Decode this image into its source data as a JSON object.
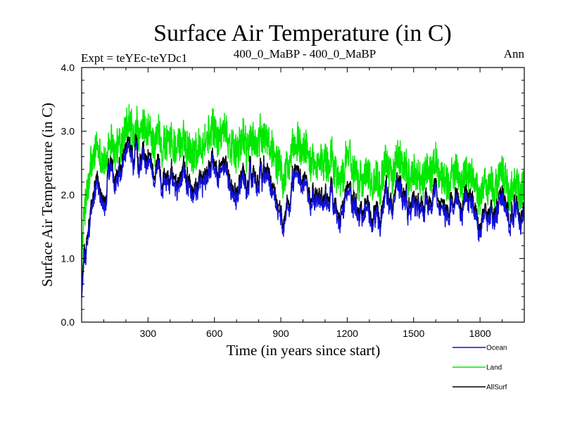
{
  "chart_data": {
    "type": "line",
    "title": "Surface Air Temperature (in C)",
    "subtitle_left": "Expt = teYEc-teYDc1",
    "subtitle_center": "400_0_MaBP - 400_0_MaBP",
    "subtitle_right": "Ann",
    "xlabel": "Time (in years since start)",
    "ylabel": "Surface Air Temperature (in C)",
    "xlim": [
      0,
      2000
    ],
    "ylim": [
      0.0,
      4.0
    ],
    "xticks": [
      300,
      600,
      900,
      1200,
      1500,
      1800
    ],
    "yticks": [
      0.0,
      1.0,
      2.0,
      3.0,
      4.0
    ],
    "xtick_labels": [
      "300",
      "600",
      "900",
      "1200",
      "1500",
      "1800"
    ],
    "ytick_labels": [
      "0.0",
      "1.0",
      "2.0",
      "3.0",
      "4.0"
    ],
    "legend_position": "bottom-right",
    "series": [
      {
        "name": "Land",
        "color": "#00e800",
        "x": [
          0,
          10,
          20,
          30,
          40,
          50,
          60,
          80,
          100,
          120,
          150,
          180,
          200,
          250,
          300,
          350,
          400,
          450,
          500,
          550,
          600,
          650,
          700,
          750,
          800,
          850,
          900,
          950,
          1000,
          1050,
          1100,
          1150,
          1200,
          1250,
          1300,
          1350,
          1400,
          1450,
          1500,
          1550,
          1600,
          1650,
          1700,
          1750,
          1800,
          1850,
          1900,
          1950,
          2000
        ],
        "values": [
          0.9,
          1.6,
          2.0,
          2.1,
          2.3,
          2.4,
          2.5,
          2.55,
          2.6,
          2.6,
          2.7,
          2.8,
          2.85,
          2.85,
          2.8,
          2.85,
          2.85,
          2.8,
          2.8,
          2.85,
          2.9,
          2.9,
          2.85,
          2.8,
          2.85,
          2.75,
          2.7,
          2.65,
          2.6,
          2.6,
          2.55,
          2.5,
          2.5,
          2.45,
          2.4,
          2.4,
          2.4,
          2.35,
          2.3,
          2.3,
          2.3,
          2.25,
          2.25,
          2.2,
          2.2,
          2.2,
          2.2,
          2.15,
          2.1
        ]
      },
      {
        "name": "AllSurf",
        "color": "#000000",
        "x": [
          0,
          10,
          20,
          30,
          40,
          50,
          60,
          80,
          100,
          120,
          150,
          180,
          200,
          250,
          300,
          350,
          400,
          450,
          500,
          550,
          600,
          650,
          700,
          750,
          800,
          850,
          900,
          950,
          1000,
          1050,
          1100,
          1150,
          1200,
          1250,
          1300,
          1350,
          1400,
          1450,
          1500,
          1550,
          1600,
          1650,
          1700,
          1750,
          1800,
          1850,
          1900,
          1950,
          2000
        ],
        "values": [
          0.5,
          1.0,
          1.25,
          1.45,
          1.6,
          1.75,
          1.85,
          1.95,
          2.05,
          2.15,
          2.3,
          2.4,
          2.45,
          2.45,
          2.35,
          2.4,
          2.35,
          2.3,
          2.3,
          2.35,
          2.35,
          2.35,
          2.3,
          2.3,
          2.3,
          2.2,
          2.15,
          2.15,
          2.1,
          2.1,
          2.05,
          2.05,
          2.05,
          2.0,
          1.95,
          1.95,
          1.95,
          1.9,
          1.9,
          1.85,
          1.85,
          1.85,
          1.85,
          1.85,
          1.85,
          1.85,
          1.85,
          1.8,
          1.75
        ]
      },
      {
        "name": "Ocean",
        "color": "#1010d8",
        "x": [
          0,
          10,
          20,
          30,
          40,
          50,
          60,
          80,
          100,
          120,
          150,
          180,
          200,
          250,
          300,
          350,
          400,
          450,
          500,
          550,
          600,
          650,
          700,
          750,
          800,
          850,
          900,
          950,
          1000,
          1050,
          1100,
          1150,
          1200,
          1250,
          1300,
          1350,
          1400,
          1450,
          1500,
          1550,
          1600,
          1650,
          1700,
          1750,
          1800,
          1850,
          1900,
          1950,
          2000
        ],
        "values": [
          0.4,
          0.9,
          1.15,
          1.35,
          1.5,
          1.65,
          1.75,
          1.85,
          1.95,
          2.05,
          2.2,
          2.3,
          2.35,
          2.35,
          2.25,
          2.3,
          2.25,
          2.2,
          2.2,
          2.25,
          2.25,
          2.25,
          2.2,
          2.2,
          2.2,
          2.1,
          2.05,
          2.05,
          2.0,
          2.0,
          1.95,
          1.95,
          1.95,
          1.9,
          1.85,
          1.85,
          1.85,
          1.8,
          1.8,
          1.75,
          1.75,
          1.75,
          1.75,
          1.75,
          1.75,
          1.75,
          1.75,
          1.7,
          1.65
        ]
      }
    ]
  }
}
